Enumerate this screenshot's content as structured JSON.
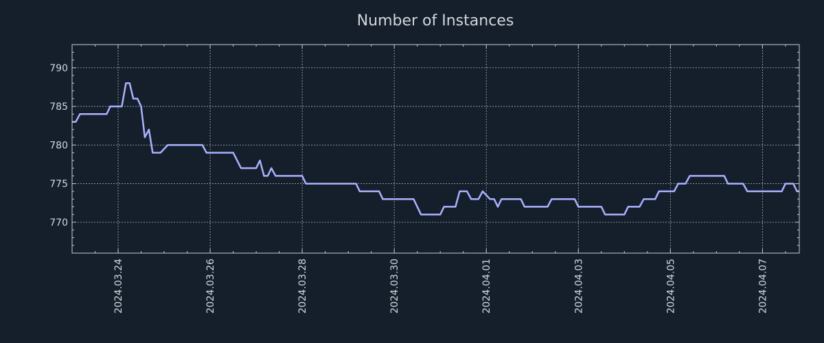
{
  "chart_data": {
    "type": "line",
    "title": "Number of Instances",
    "xlabel": "",
    "ylabel": "",
    "ylim": [
      766,
      793
    ],
    "xlim": [
      0,
      15.8
    ],
    "x_reference_date": "2024.03.23",
    "x_unit": "days",
    "grid": true,
    "legend": "none",
    "yticks": [
      770,
      775,
      780,
      785,
      790
    ],
    "xticks": [
      {
        "value": 1,
        "label": "2024.03.24"
      },
      {
        "value": 3,
        "label": "2024.03.26"
      },
      {
        "value": 5,
        "label": "2024.03.28"
      },
      {
        "value": 7,
        "label": "2024.03.30"
      },
      {
        "value": 9,
        "label": "2024.04.01"
      },
      {
        "value": 11,
        "label": "2024.04.03"
      },
      {
        "value": 13,
        "label": "2024.04.05"
      },
      {
        "value": 15,
        "label": "2024.04.07"
      }
    ],
    "series": [
      {
        "name": "instances",
        "color": "#aab2ff",
        "x": [
          0.0,
          0.08,
          0.17,
          0.75,
          0.83,
          1.08,
          1.17,
          1.25,
          1.33,
          1.42,
          1.5,
          1.58,
          1.67,
          1.75,
          1.8,
          1.85,
          1.92,
          2.08,
          2.17,
          2.33,
          2.83,
          2.92,
          3.5,
          3.67,
          4.0,
          4.08,
          4.17,
          4.25,
          4.33,
          4.42,
          4.5,
          5.0,
          5.08,
          5.17,
          6.17,
          6.25,
          6.67,
          6.75,
          7.42,
          7.58,
          8.0,
          8.08,
          8.33,
          8.42,
          8.58,
          8.67,
          8.83,
          8.92,
          9.08,
          9.17,
          9.25,
          9.33,
          9.75,
          9.83,
          10.33,
          10.42,
          10.92,
          11.0,
          11.5,
          11.58,
          12.0,
          12.08,
          12.33,
          12.42,
          12.67,
          12.75,
          13.08,
          13.17,
          13.33,
          13.42,
          14.17,
          14.25,
          14.58,
          14.67,
          15.42,
          15.5,
          15.67,
          15.75,
          15.8
        ],
        "values": [
          783,
          783,
          784,
          784,
          785,
          785,
          788,
          788,
          786,
          786,
          785,
          781,
          782,
          779,
          779,
          779,
          779,
          780,
          780,
          780,
          780,
          779,
          779,
          777,
          777,
          778,
          776,
          776,
          777,
          776,
          776,
          776,
          775,
          775,
          775,
          774,
          774,
          773,
          773,
          771,
          771,
          772,
          772,
          774,
          774,
          773,
          773,
          774,
          773,
          773,
          772,
          773,
          773,
          772,
          772,
          773,
          773,
          772,
          772,
          771,
          771,
          772,
          772,
          773,
          773,
          774,
          774,
          775,
          775,
          776,
          776,
          775,
          775,
          774,
          774,
          775,
          775,
          774,
          774
        ]
      }
    ]
  }
}
